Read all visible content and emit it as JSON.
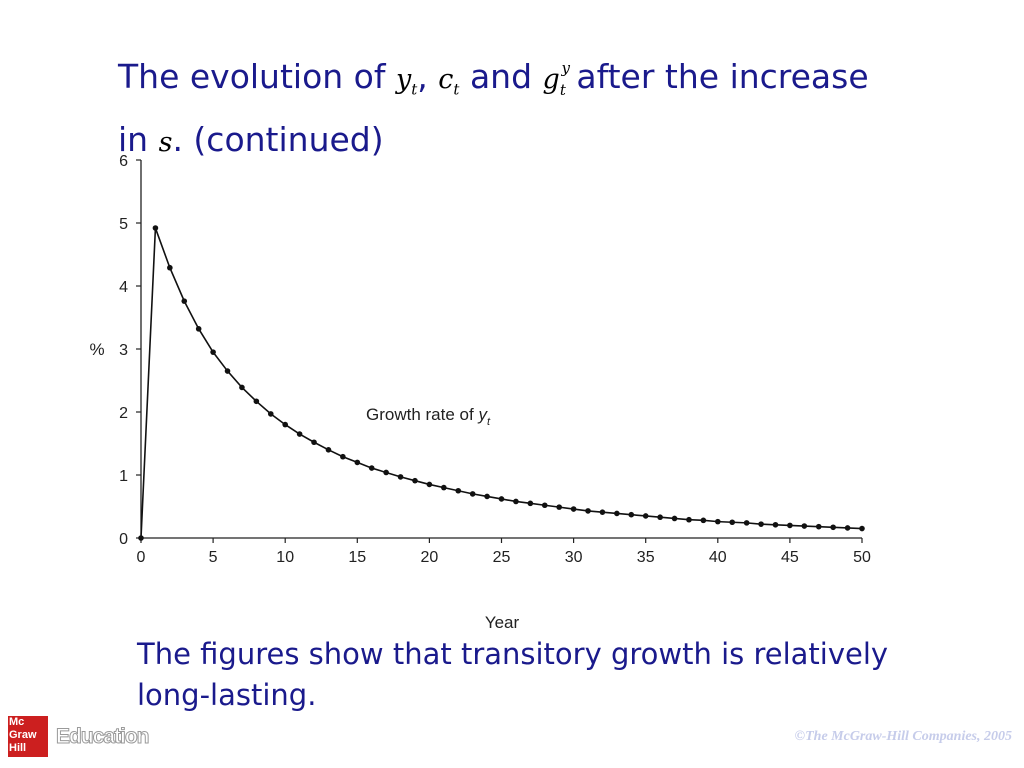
{
  "slide": {
    "title_part1": "The evolution of",
    "title_var1": "y",
    "title_var1_sub": "t",
    "title_comma": ",",
    "title_var2": "c",
    "title_var2_sub": "t",
    "title_and": "and",
    "title_var3": "g",
    "title_var3_sub": "t",
    "title_var3_sup": "y",
    "title_part2": "after the increase",
    "title_in": "in",
    "title_var4": "s",
    "title_part3": ". (continued)",
    "caption": "The figures show that transitory growth is relatively long-lasting."
  },
  "footer": {
    "logo_text": "Mc Graw Hill",
    "logo_word": "Education",
    "copyright": "©The McGraw-Hill Companies, 2005",
    "logo_color": "#cc1f1f"
  },
  "chart_data": {
    "type": "line",
    "xlabel": "Year",
    "ylabel": "%",
    "xlim": [
      0,
      50
    ],
    "ylim": [
      0,
      6
    ],
    "xticks": [
      0,
      5,
      10,
      15,
      20,
      25,
      30,
      35,
      40,
      45,
      50
    ],
    "yticks": [
      0,
      1,
      2,
      3,
      4,
      5,
      6
    ],
    "grid": false,
    "annotation": {
      "text": "Growth rate of",
      "var": "y",
      "sub": "t",
      "at_x": 26,
      "at_y": 1.95
    },
    "series": [
      {
        "x": [
          0,
          1,
          2,
          3,
          4,
          5,
          6,
          7,
          8,
          9,
          10,
          11,
          12,
          13,
          14,
          15,
          16,
          17,
          18,
          19,
          20,
          21,
          22,
          23,
          24,
          25,
          26,
          27,
          28,
          29,
          30,
          31,
          32,
          33,
          34,
          35,
          36,
          37,
          38,
          39,
          40,
          41,
          42,
          43,
          44,
          45,
          46,
          47,
          48,
          49,
          50
        ],
        "values": [
          0.0,
          4.92,
          4.29,
          3.76,
          3.32,
          2.95,
          2.65,
          2.39,
          2.17,
          1.97,
          1.8,
          1.65,
          1.52,
          1.4,
          1.29,
          1.2,
          1.11,
          1.04,
          0.97,
          0.91,
          0.85,
          0.8,
          0.75,
          0.7,
          0.66,
          0.62,
          0.58,
          0.55,
          0.52,
          0.49,
          0.46,
          0.43,
          0.41,
          0.39,
          0.37,
          0.35,
          0.33,
          0.31,
          0.29,
          0.28,
          0.26,
          0.25,
          0.24,
          0.22,
          0.21,
          0.2,
          0.19,
          0.18,
          0.17,
          0.16,
          0.15
        ]
      }
    ]
  }
}
